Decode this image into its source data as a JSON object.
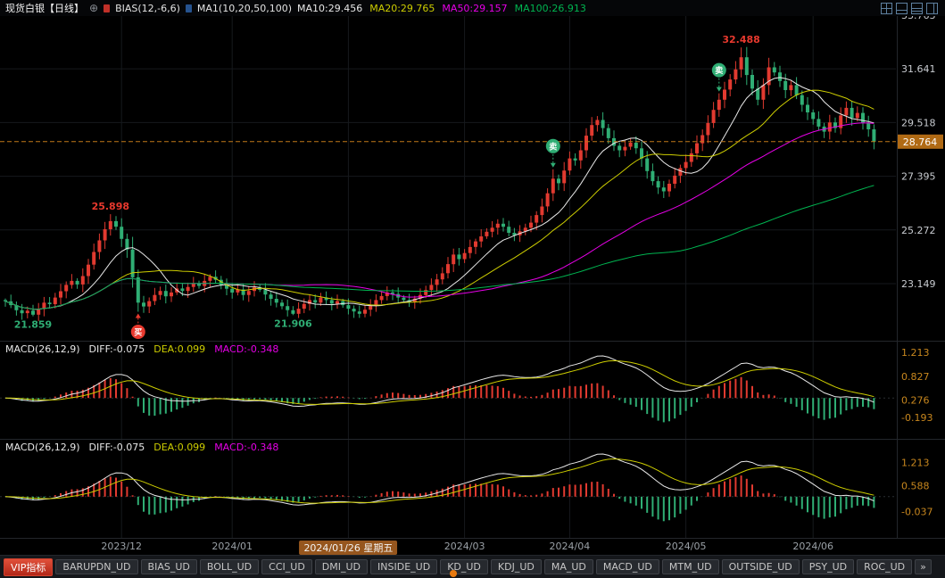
{
  "header": {
    "symbol": "现货白银【日线】",
    "add_icon": "⊕",
    "bias_label": "BIAS(12,-6,6)",
    "ma_group_label": "MA1(10,20,50,100)",
    "ma_values": [
      {
        "text": "MA10:29.456",
        "color": "#e8e8e8"
      },
      {
        "text": "MA20:29.765",
        "color": "#cdcd00"
      },
      {
        "text": "MA50:29.157",
        "color": "#e600e6"
      },
      {
        "text": "MA100:26.913",
        "color": "#00b450"
      }
    ],
    "layout_icons": [
      "split-quad-icon",
      "split-main-sub-icon",
      "split-triple-icon",
      "split-vertical-icon"
    ]
  },
  "chart_data": {
    "type": "candlestick",
    "title": "现货白银 日线",
    "up_color": "#e23a30",
    "down_color": "#2fae74",
    "ma_lines": [
      {
        "period": 10,
        "color": "#e8e8e8"
      },
      {
        "period": 20,
        "color": "#cdcd00"
      },
      {
        "period": 50,
        "color": "#e600e6"
      },
      {
        "period": 100,
        "color": "#00b450"
      }
    ],
    "y_axis": {
      "max": 33.763,
      "ticks": [
        "33.763",
        "31.641",
        "29.518",
        "27.395",
        "25.272",
        "23.149"
      ]
    },
    "current_price": "28.764",
    "closes": [
      22.45,
      22.3,
      22.1,
      21.98,
      22.08,
      21.92,
      22.15,
      22.4,
      22.34,
      22.6,
      22.85,
      23.1,
      23.26,
      23.12,
      23.45,
      23.9,
      24.4,
      24.86,
      25.3,
      25.62,
      25.4,
      24.92,
      24.5,
      23.4,
      22.4,
      22.25,
      22.46,
      22.7,
      22.86,
      22.65,
      22.8,
      22.96,
      22.86,
      23.02,
      23.16,
      23.06,
      23.26,
      23.42,
      23.3,
      23.1,
      22.95,
      22.8,
      22.92,
      22.7,
      22.86,
      23.0,
      22.9,
      22.72,
      22.55,
      22.4,
      22.26,
      22.1,
      21.96,
      22.16,
      22.35,
      22.5,
      22.4,
      22.6,
      22.5,
      22.36,
      22.46,
      22.3,
      22.16,
      22.05,
      21.96,
      22.12,
      22.3,
      22.5,
      22.66,
      22.8,
      22.74,
      22.6,
      22.5,
      22.42,
      22.56,
      22.7,
      22.9,
      23.1,
      23.32,
      23.56,
      23.92,
      24.3,
      24.12,
      24.36,
      24.6,
      24.82,
      25.02,
      25.2,
      25.36,
      25.52,
      25.4,
      25.16,
      25.06,
      25.22,
      25.36,
      25.56,
      25.86,
      26.2,
      26.72,
      27.3,
      27.12,
      27.62,
      28.1,
      28.02,
      28.42,
      29.0,
      29.42,
      29.62,
      29.3,
      28.9,
      28.6,
      28.42,
      28.56,
      28.72,
      28.5,
      28.1,
      27.6,
      27.2,
      26.95,
      26.8,
      27.1,
      27.42,
      27.72,
      27.96,
      28.3,
      28.7,
      29.02,
      29.5,
      30.02,
      30.42,
      30.82,
      31.22,
      31.62,
      32.1,
      31.4,
      30.86,
      30.42,
      31.0,
      31.7,
      31.5,
      31.16,
      30.8,
      31.0,
      30.6,
      30.22,
      29.92,
      29.66,
      29.36,
      29.16,
      29.52,
      29.3,
      29.8,
      30.1,
      29.7,
      29.9,
      29.5,
      29.25,
      28.764
    ],
    "x_ticks": [
      {
        "index": 21,
        "label": "2023/12"
      },
      {
        "index": 41,
        "label": "2024/01"
      },
      {
        "index": 62,
        "label": "2024/01/26 星期五",
        "selected": true
      },
      {
        "index": 83,
        "label": "2024/03"
      },
      {
        "index": 102,
        "label": "2024/04"
      },
      {
        "index": 123,
        "label": "2024/05"
      },
      {
        "index": 146,
        "label": "2024/06"
      }
    ],
    "annotations": [
      {
        "type": "low",
        "index": 5,
        "label": "21.859"
      },
      {
        "type": "high",
        "index": 19,
        "label": "25.898"
      },
      {
        "type": "buy",
        "index": 24,
        "label": "买"
      },
      {
        "type": "low",
        "index": 52,
        "label": "21.906"
      },
      {
        "type": "sell",
        "index": 99,
        "label": "卖"
      },
      {
        "type": "sell",
        "index": 129,
        "label": "卖"
      },
      {
        "type": "high",
        "index": 133,
        "label": "32.488"
      }
    ]
  },
  "macd_panels": [
    {
      "name": "MACD(26,12,9)",
      "diff": "DIFF:-0.075",
      "dea": "DEA:0.099",
      "macd": "MACD:-0.348",
      "ticks": [
        "1.213",
        "0.827",
        "0.276",
        "-0.193"
      ]
    },
    {
      "name": "MACD(26,12,9)",
      "diff": "DIFF:-0.075",
      "dea": "DEA:0.099",
      "macd": "MACD:-0.348",
      "ticks": [
        "1.213",
        "0.588",
        "-0.037"
      ]
    }
  ],
  "toolbar": {
    "vip_label": "VIP指标",
    "items": [
      "BARUPDN_UD",
      "BIAS_UD",
      "BOLL_UD",
      "CCI_UD",
      "DMI_UD",
      "INSIDE_UD",
      "KD_UD",
      "KDJ_UD",
      "MA_UD",
      "MACD_UD",
      "MTM_UD",
      "OUTSIDE_UD",
      "PSY_UD",
      "ROC_UD"
    ],
    "more_label": "»"
  }
}
